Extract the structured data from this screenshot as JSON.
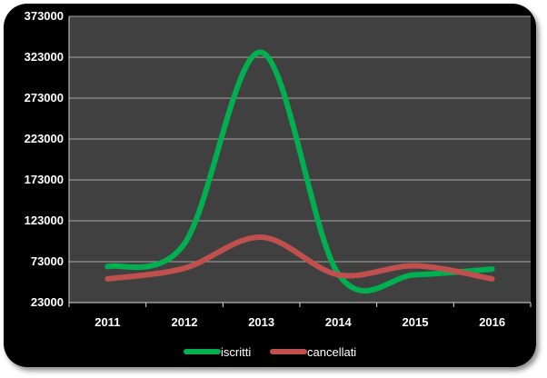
{
  "chart_data": {
    "type": "line",
    "title": "",
    "xlabel": "",
    "ylabel": "",
    "categories": [
      "2011",
      "2012",
      "2013",
      "2014",
      "2015",
      "2016"
    ],
    "ylim": [
      23000,
      373000
    ],
    "yticks": [
      "23000",
      "73000",
      "123000",
      "173000",
      "223000",
      "273000",
      "323000",
      "373000"
    ],
    "grid": true,
    "legend_position": "bottom",
    "series": [
      {
        "name": "iscritti",
        "color": "#00b050",
        "values": [
          67000,
          95000,
          329000,
          58000,
          57000,
          64000
        ]
      },
      {
        "name": "cancellati",
        "color": "#c0504d",
        "values": [
          52000,
          65000,
          103000,
          57000,
          68000,
          52000
        ]
      }
    ]
  }
}
